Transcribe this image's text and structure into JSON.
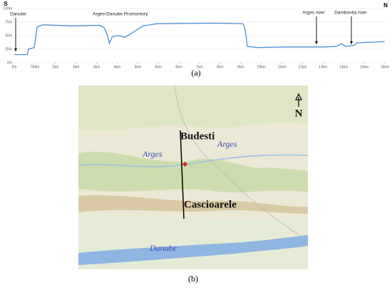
{
  "chart_data": {
    "type": "line",
    "start_label": "S",
    "end_label": "N",
    "annotations": [
      "Danube",
      "Arges-Danube Promontory",
      "Arges river",
      "Dambovita river"
    ],
    "xlim": [
      0,
      18
    ],
    "xticks": [
      {
        "value": 0,
        "label": "0m"
      },
      {
        "value": 1,
        "label": "784m"
      },
      {
        "value": 2,
        "label": "2km"
      },
      {
        "value": 3,
        "label": "2km"
      },
      {
        "value": 4,
        "label": "3km"
      },
      {
        "value": 5,
        "label": "4km"
      },
      {
        "value": 6,
        "label": "5km"
      },
      {
        "value": 7,
        "label": "5km"
      },
      {
        "value": 8,
        "label": "6km"
      },
      {
        "value": 9,
        "label": "7km"
      },
      {
        "value": 10,
        "label": "8km"
      },
      {
        "value": 11,
        "label": "9km"
      },
      {
        "value": 12,
        "label": "10km"
      },
      {
        "value": 13,
        "label": "11km"
      },
      {
        "value": 14,
        "label": "12km"
      },
      {
        "value": 15,
        "label": "13km"
      },
      {
        "value": 16,
        "label": "14km"
      },
      {
        "value": 17,
        "label": "15km"
      },
      {
        "value": 18,
        "label": "16km"
      }
    ],
    "ylim": [
      0,
      100
    ],
    "yticks": [
      {
        "value": 0,
        "label": "0m"
      },
      {
        "value": 25,
        "label": "25m"
      },
      {
        "value": 50,
        "label": "50m"
      },
      {
        "value": 75,
        "label": "75m"
      },
      {
        "value": 100,
        "label": "100m"
      }
    ],
    "grid": true,
    "series": [
      {
        "color": "#4a8fd4",
        "x": [
          0,
          0.63,
          0.69,
          0.97,
          1.11,
          1.39,
          2.78,
          4.17,
          4.38,
          4.51,
          4.62,
          4.76,
          5.03,
          5.38,
          5.73,
          6.25,
          6.94,
          9.72,
          11.11,
          11.22,
          11.32,
          11.81,
          13.19,
          14.93,
          15.63,
          15.9,
          16.11,
          16.49,
          16.67,
          17.36,
          17.99
        ],
        "values": [
          15,
          15,
          25,
          28,
          66,
          70,
          68,
          69,
          64,
          52,
          36,
          48,
          50,
          47,
          55,
          68,
          72,
          73,
          72,
          60,
          30,
          28,
          29,
          29,
          30,
          35,
          30,
          32,
          37,
          38,
          39
        ]
      }
    ]
  },
  "panel_labels": [
    "(a)",
    "(b)"
  ],
  "map": {
    "north": "N",
    "labels": [
      "Budesti",
      "Arges",
      "Arges",
      "Cascioarele",
      "Danube"
    ]
  }
}
